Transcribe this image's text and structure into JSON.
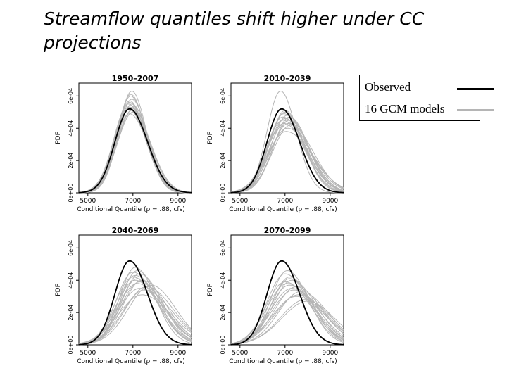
{
  "slide": {
    "title": "Streamflow quantiles shift higher under CC projections"
  },
  "legend": {
    "observed_label": "Observed",
    "gcm_label": "16 GCM models",
    "observed_color": "#000000",
    "gcm_color": "#b5b5b5"
  },
  "chart_data": [
    {
      "type": "line",
      "title": "1950–2007",
      "xlabel": "Conditional Quantile (ρ = .88, cfs)",
      "ylabel": "PDF",
      "xlim": [
        4600,
        9600
      ],
      "ylim": [
        0,
        0.00068
      ],
      "x_ticks": [
        "5000",
        "7000",
        "9000"
      ],
      "y_ticks": [
        "0e+00",
        "2e-04",
        "4e-04",
        "6e-04"
      ],
      "observed": {
        "peak_x": 6850,
        "peak_y": 0.00052,
        "sigma_left": 650,
        "sigma_right": 800
      },
      "gcm_models": [
        {
          "peak_x": 6950,
          "peak_y": 0.00063,
          "sigma_left": 600,
          "sigma_right": 650
        },
        {
          "peak_x": 6900,
          "peak_y": 0.0006,
          "sigma_left": 620,
          "sigma_right": 700
        },
        {
          "peak_x": 6850,
          "peak_y": 0.00057,
          "sigma_left": 640,
          "sigma_right": 720
        },
        {
          "peak_x": 6800,
          "peak_y": 0.00055,
          "sigma_left": 650,
          "sigma_right": 760
        },
        {
          "peak_x": 6900,
          "peak_y": 0.00053,
          "sigma_left": 660,
          "sigma_right": 780
        },
        {
          "peak_x": 6950,
          "peak_y": 0.00051,
          "sigma_left": 680,
          "sigma_right": 800
        },
        {
          "peak_x": 7000,
          "peak_y": 0.0005,
          "sigma_left": 700,
          "sigma_right": 800
        },
        {
          "peak_x": 6800,
          "peak_y": 0.00052,
          "sigma_left": 650,
          "sigma_right": 800
        },
        {
          "peak_x": 6850,
          "peak_y": 0.00056,
          "sigma_left": 620,
          "sigma_right": 760
        },
        {
          "peak_x": 6900,
          "peak_y": 0.00054,
          "sigma_left": 640,
          "sigma_right": 740
        },
        {
          "peak_x": 6950,
          "peak_y": 0.00058,
          "sigma_left": 610,
          "sigma_right": 700
        },
        {
          "peak_x": 7000,
          "peak_y": 0.00052,
          "sigma_left": 680,
          "sigma_right": 760
        },
        {
          "peak_x": 6850,
          "peak_y": 0.00049,
          "sigma_left": 700,
          "sigma_right": 820
        },
        {
          "peak_x": 6900,
          "peak_y": 0.00061,
          "sigma_left": 600,
          "sigma_right": 690
        },
        {
          "peak_x": 6800,
          "peak_y": 0.00053,
          "sigma_left": 660,
          "sigma_right": 780
        },
        {
          "peak_x": 6950,
          "peak_y": 0.00055,
          "sigma_left": 640,
          "sigma_right": 740
        }
      ]
    },
    {
      "type": "line",
      "title": "2010–2039",
      "xlabel": "Conditional Quantile (ρ = .88, cfs)",
      "ylabel": "PDF",
      "xlim": [
        4600,
        9600
      ],
      "ylim": [
        0,
        0.00068
      ],
      "x_ticks": [
        "5000",
        "7000",
        "9000"
      ],
      "y_ticks": [
        "0e+00",
        "2e-04",
        "4e-04",
        "6e-04"
      ],
      "observed": {
        "peak_x": 6850,
        "peak_y": 0.00052,
        "sigma_left": 650,
        "sigma_right": 800
      },
      "gcm_models": [
        {
          "peak_x": 6800,
          "peak_y": 0.00063,
          "sigma_left": 600,
          "sigma_right": 700
        },
        {
          "peak_x": 7000,
          "peak_y": 0.0005,
          "sigma_left": 700,
          "sigma_right": 850
        },
        {
          "peak_x": 7100,
          "peak_y": 0.00048,
          "sigma_left": 720,
          "sigma_right": 900
        },
        {
          "peak_x": 7000,
          "peak_y": 0.00046,
          "sigma_left": 750,
          "sigma_right": 950
        },
        {
          "peak_x": 7200,
          "peak_y": 0.00045,
          "sigma_left": 750,
          "sigma_right": 900
        },
        {
          "peak_x": 6900,
          "peak_y": 0.00047,
          "sigma_left": 700,
          "sigma_right": 1000
        },
        {
          "peak_x": 7050,
          "peak_y": 0.00044,
          "sigma_left": 760,
          "sigma_right": 1050
        },
        {
          "peak_x": 7150,
          "peak_y": 0.00043,
          "sigma_left": 780,
          "sigma_right": 950
        },
        {
          "peak_x": 6950,
          "peak_y": 0.00049,
          "sigma_left": 700,
          "sigma_right": 880
        },
        {
          "peak_x": 7250,
          "peak_y": 0.00042,
          "sigma_left": 800,
          "sigma_right": 1000
        },
        {
          "peak_x": 7000,
          "peak_y": 0.00051,
          "sigma_left": 680,
          "sigma_right": 820
        },
        {
          "peak_x": 7100,
          "peak_y": 0.0004,
          "sigma_left": 820,
          "sigma_right": 1100
        },
        {
          "peak_x": 6900,
          "peak_y": 0.00045,
          "sigma_left": 740,
          "sigma_right": 950
        },
        {
          "peak_x": 7200,
          "peak_y": 0.00047,
          "sigma_left": 720,
          "sigma_right": 860
        },
        {
          "peak_x": 7050,
          "peak_y": 0.00038,
          "sigma_left": 850,
          "sigma_right": 1150
        },
        {
          "peak_x": 6950,
          "peak_y": 0.00043,
          "sigma_left": 760,
          "sigma_right": 980
        }
      ]
    },
    {
      "type": "line",
      "title": "2040–2069",
      "xlabel": "Conditional Quantile (ρ = .88, cfs)",
      "ylabel": "PDF",
      "xlim": [
        4600,
        9600
      ],
      "ylim": [
        0,
        0.00068
      ],
      "x_ticks": [
        "5000",
        "7000",
        "9000"
      ],
      "y_ticks": [
        "0e+00",
        "2e-04",
        "4e-04",
        "6e-04"
      ],
      "observed": {
        "peak_x": 6850,
        "peak_y": 0.00052,
        "sigma_left": 650,
        "sigma_right": 800
      },
      "gcm_models": [
        {
          "peak_x": 7100,
          "peak_y": 0.00048,
          "sigma_left": 700,
          "sigma_right": 900
        },
        {
          "peak_x": 7200,
          "peak_y": 0.00046,
          "sigma_left": 750,
          "sigma_right": 950
        },
        {
          "peak_x": 7300,
          "peak_y": 0.00044,
          "sigma_left": 800,
          "sigma_right": 1000
        },
        {
          "peak_x": 7000,
          "peak_y": 0.00045,
          "sigma_left": 750,
          "sigma_right": 1050
        },
        {
          "peak_x": 7400,
          "peak_y": 0.0004,
          "sigma_left": 850,
          "sigma_right": 1100
        },
        {
          "peak_x": 7200,
          "peak_y": 0.00041,
          "sigma_left": 800,
          "sigma_right": 1150
        },
        {
          "peak_x": 7600,
          "peak_y": 0.00036,
          "sigma_left": 950,
          "sigma_right": 1200
        },
        {
          "peak_x": 7300,
          "peak_y": 0.00039,
          "sigma_left": 850,
          "sigma_right": 1100
        },
        {
          "peak_x": 7100,
          "peak_y": 0.00043,
          "sigma_left": 780,
          "sigma_right": 1000
        },
        {
          "peak_x": 7500,
          "peak_y": 0.00034,
          "sigma_left": 950,
          "sigma_right": 1250
        },
        {
          "peak_x": 7800,
          "peak_y": 0.00037,
          "sigma_left": 1000,
          "sigma_right": 1100
        },
        {
          "peak_x": 7000,
          "peak_y": 0.00042,
          "sigma_left": 800,
          "sigma_right": 1100
        },
        {
          "peak_x": 7400,
          "peak_y": 0.00031,
          "sigma_left": 1050,
          "sigma_right": 1300
        },
        {
          "peak_x": 7200,
          "peak_y": 0.00038,
          "sigma_left": 900,
          "sigma_right": 1150
        },
        {
          "peak_x": 7300,
          "peak_y": 0.00035,
          "sigma_left": 950,
          "sigma_right": 1200
        },
        {
          "peak_x": 7100,
          "peak_y": 0.0004,
          "sigma_left": 850,
          "sigma_right": 1100
        }
      ]
    },
    {
      "type": "line",
      "title": "2070–2099",
      "xlabel": "Conditional Quantile (ρ = .88, cfs)",
      "ylabel": "PDF",
      "xlim": [
        4600,
        9600
      ],
      "ylim": [
        0,
        0.00068
      ],
      "x_ticks": [
        "5000",
        "7000",
        "9000"
      ],
      "y_ticks": [
        "0e+00",
        "2e-04",
        "4e-04",
        "6e-04"
      ],
      "observed": {
        "peak_x": 6850,
        "peak_y": 0.00052,
        "sigma_left": 650,
        "sigma_right": 800
      },
      "gcm_models": [
        {
          "peak_x": 7100,
          "peak_y": 0.00046,
          "sigma_left": 750,
          "sigma_right": 950
        },
        {
          "peak_x": 7200,
          "peak_y": 0.00042,
          "sigma_left": 800,
          "sigma_right": 1000
        },
        {
          "peak_x": 7000,
          "peak_y": 0.00044,
          "sigma_left": 800,
          "sigma_right": 1050
        },
        {
          "peak_x": 7300,
          "peak_y": 0.0004,
          "sigma_left": 850,
          "sigma_right": 1100
        },
        {
          "peak_x": 7500,
          "peak_y": 0.00036,
          "sigma_left": 950,
          "sigma_right": 1150
        },
        {
          "peak_x": 7700,
          "peak_y": 0.00033,
          "sigma_left": 1000,
          "sigma_right": 1200
        },
        {
          "peak_x": 7900,
          "peak_y": 0.00028,
          "sigma_left": 1100,
          "sigma_right": 1150
        },
        {
          "peak_x": 7100,
          "peak_y": 0.00038,
          "sigma_left": 900,
          "sigma_right": 1150
        },
        {
          "peak_x": 7400,
          "peak_y": 0.00034,
          "sigma_left": 1000,
          "sigma_right": 1250
        },
        {
          "peak_x": 7200,
          "peak_y": 0.00041,
          "sigma_left": 820,
          "sigma_right": 1050
        },
        {
          "peak_x": 7600,
          "peak_y": 0.00031,
          "sigma_left": 1050,
          "sigma_right": 1250
        },
        {
          "peak_x": 7000,
          "peak_y": 0.00039,
          "sigma_left": 850,
          "sigma_right": 1150
        },
        {
          "peak_x": 7300,
          "peak_y": 0.00035,
          "sigma_left": 950,
          "sigma_right": 1200
        },
        {
          "peak_x": 8000,
          "peak_y": 0.00027,
          "sigma_left": 1150,
          "sigma_right": 1200
        },
        {
          "peak_x": 7200,
          "peak_y": 0.00037,
          "sigma_left": 900,
          "sigma_right": 1150
        },
        {
          "peak_x": 7500,
          "peak_y": 0.0003,
          "sigma_left": 1050,
          "sigma_right": 1300
        }
      ]
    }
  ]
}
